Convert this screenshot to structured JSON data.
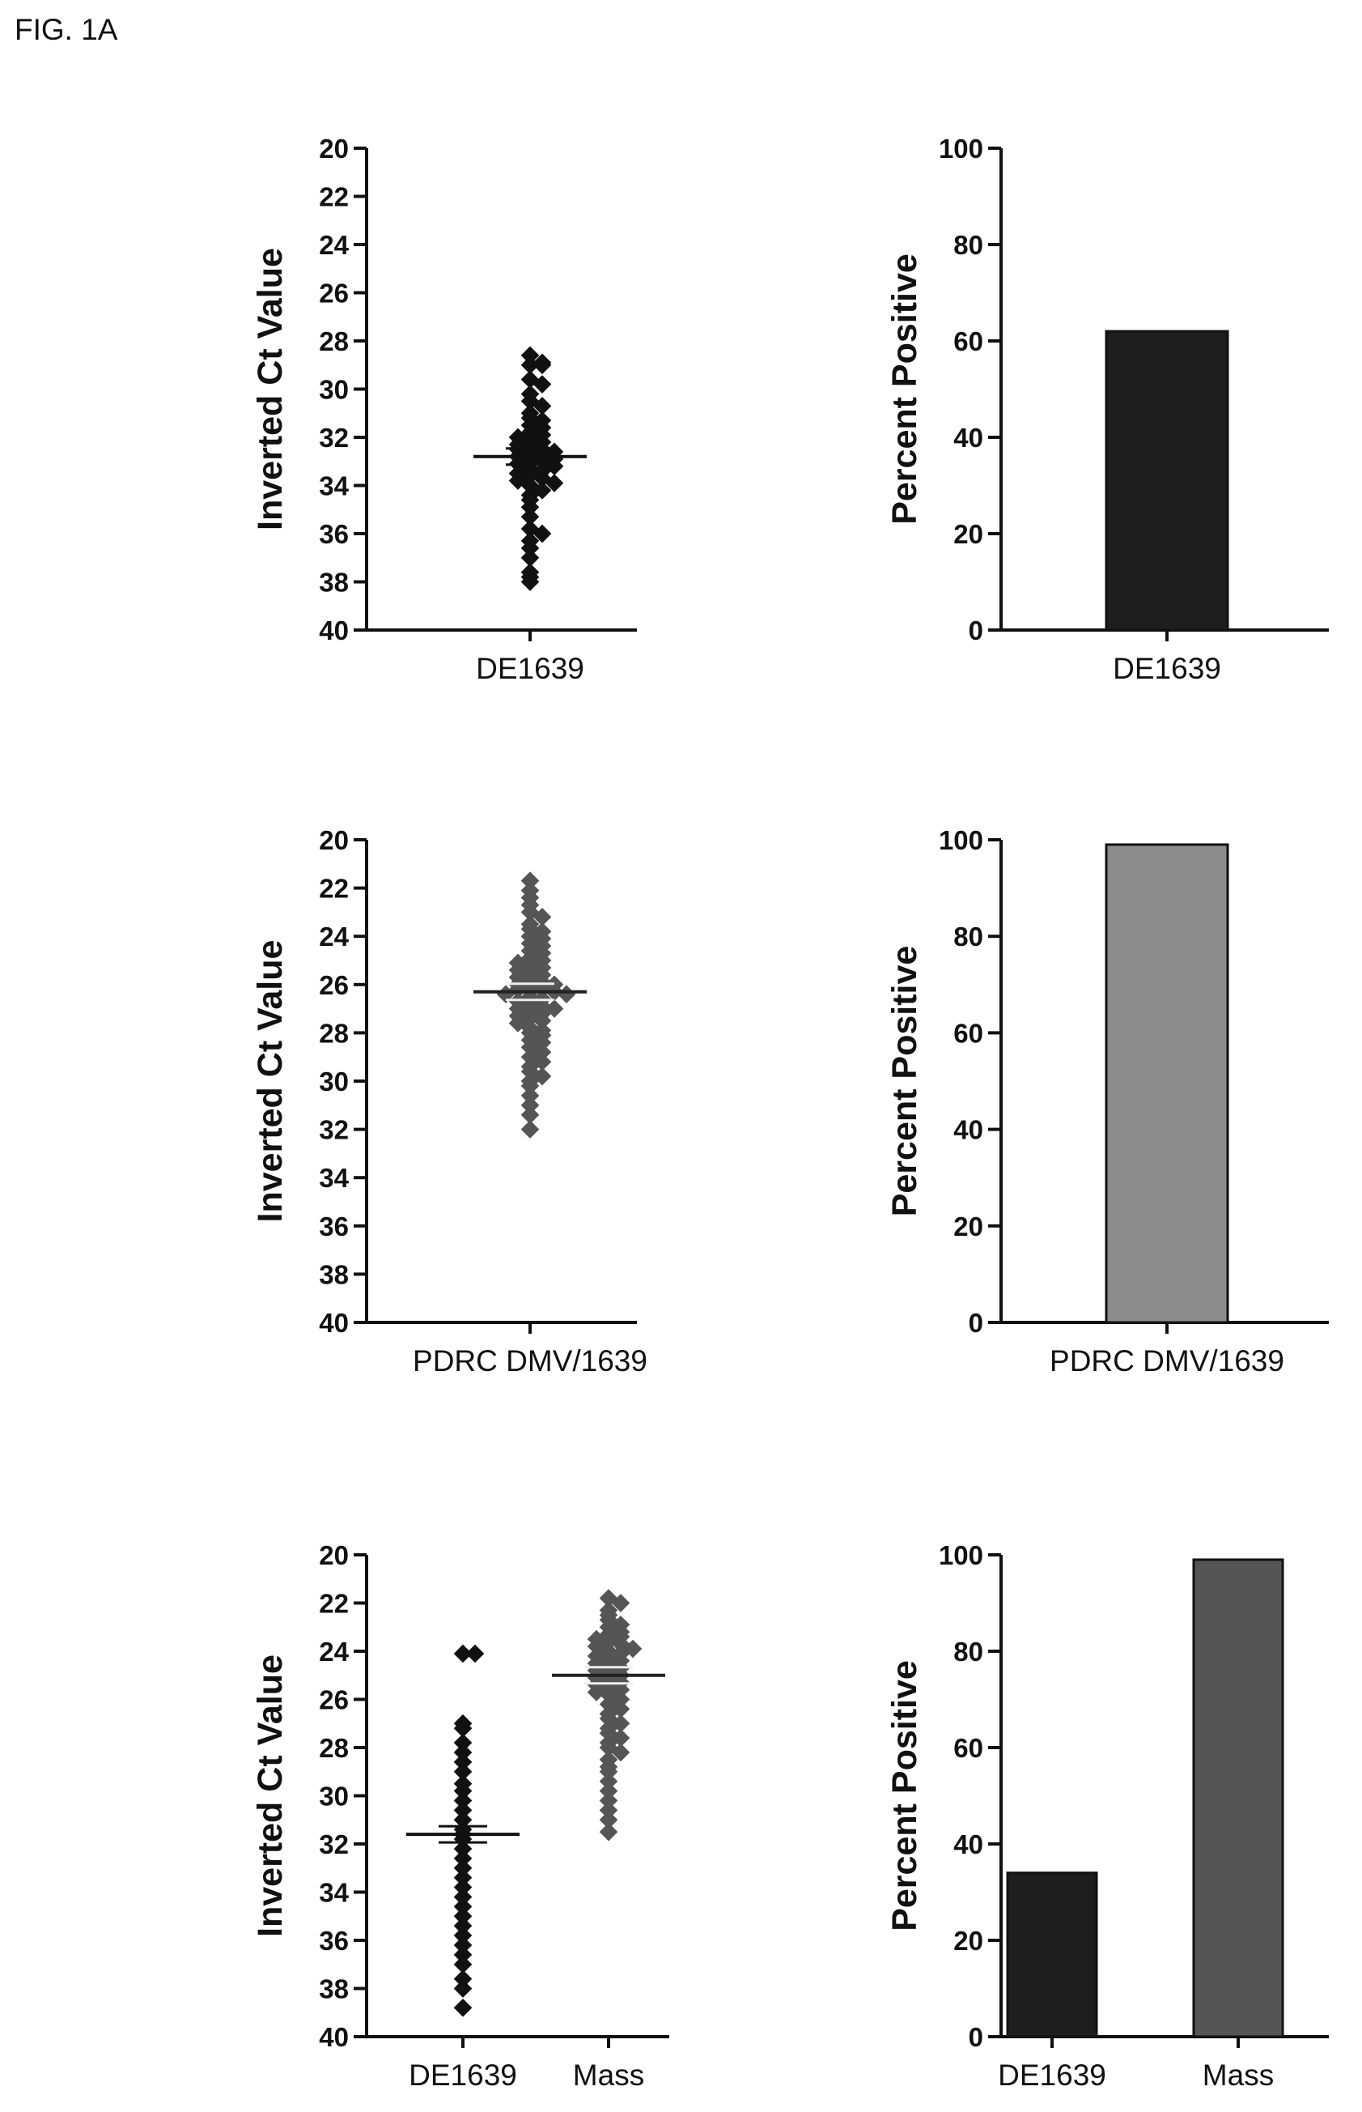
{
  "figure_label": "FIG. 1A",
  "chart_data": [
    {
      "id": "scatter-de1639",
      "type": "scatter",
      "ylabel": "Inverted Ct Value",
      "ylim": [
        20,
        40
      ],
      "y_inverted": true,
      "yticks": [
        20,
        22,
        24,
        26,
        28,
        30,
        32,
        34,
        36,
        38,
        40
      ],
      "categories": [
        "DE1639"
      ],
      "series": [
        {
          "category": "DE1639",
          "color": "#111111",
          "mean": 32.8,
          "values": [
            28.6,
            28.9,
            29.0,
            29.0,
            29.6,
            29.8,
            30.2,
            30.5,
            30.7,
            31.0,
            31.2,
            31.3,
            31.5,
            31.6,
            31.8,
            31.9,
            32.0,
            32.1,
            32.2,
            32.3,
            32.4,
            32.5,
            32.5,
            32.6,
            32.7,
            32.8,
            32.8,
            32.9,
            33.0,
            33.0,
            33.1,
            33.2,
            33.3,
            33.4,
            33.5,
            33.6,
            33.7,
            33.8,
            33.9,
            34.0,
            34.2,
            34.4,
            34.6,
            34.9,
            35.3,
            35.8,
            36.0,
            36.3,
            36.6,
            37.0,
            37.6,
            37.8,
            38.0
          ]
        }
      ]
    },
    {
      "id": "bar-de1639",
      "type": "bar",
      "ylabel": "Percent Positive",
      "ylim": [
        0,
        100
      ],
      "yticks": [
        0,
        20,
        40,
        60,
        80,
        100
      ],
      "categories": [
        "DE1639"
      ],
      "values": [
        62
      ],
      "colors": [
        "#1e1e1e"
      ]
    },
    {
      "id": "scatter-pdrc",
      "type": "scatter",
      "ylabel": "Inverted Ct Value",
      "ylim": [
        20,
        40
      ],
      "y_inverted": true,
      "yticks": [
        20,
        22,
        24,
        26,
        28,
        30,
        32,
        34,
        36,
        38,
        40
      ],
      "categories": [
        "PDRC DMV/1639"
      ],
      "series": [
        {
          "category": "PDRC DMV/1639",
          "color": "#555555",
          "mean": 26.3,
          "values": [
            21.7,
            22.1,
            22.4,
            22.7,
            23.0,
            23.2,
            23.5,
            23.7,
            23.8,
            24.0,
            24.1,
            24.3,
            24.4,
            24.6,
            24.7,
            24.9,
            25.0,
            25.1,
            25.2,
            25.3,
            25.4,
            25.5,
            25.6,
            25.7,
            25.8,
            25.9,
            26.0,
            26.0,
            26.1,
            26.2,
            26.2,
            26.3,
            26.4,
            26.4,
            26.5,
            26.6,
            26.7,
            26.8,
            26.9,
            27.0,
            27.0,
            27.1,
            27.2,
            27.3,
            27.4,
            27.5,
            27.6,
            27.8,
            27.9,
            28.0,
            28.1,
            28.3,
            28.4,
            28.6,
            28.8,
            29.0,
            29.2,
            29.4,
            29.6,
            29.8,
            30.0,
            30.2,
            30.6,
            31.0,
            31.4,
            32.0
          ]
        }
      ]
    },
    {
      "id": "bar-pdrc",
      "type": "bar",
      "ylabel": "Percent Positive",
      "ylim": [
        0,
        100
      ],
      "yticks": [
        0,
        20,
        40,
        60,
        80,
        100
      ],
      "categories": [
        "PDRC DMV/1639"
      ],
      "values": [
        99
      ],
      "colors": [
        "#8c8c8c"
      ]
    },
    {
      "id": "scatter-mass",
      "type": "scatter",
      "ylabel": "Inverted Ct Value",
      "ylim": [
        20,
        40
      ],
      "y_inverted": true,
      "yticks": [
        20,
        22,
        24,
        26,
        28,
        30,
        32,
        34,
        36,
        38,
        40
      ],
      "categories": [
        "DE1639",
        "Mass"
      ],
      "series": [
        {
          "category": "DE1639",
          "color": "#111111",
          "mean": 31.6,
          "values": [
            24.1,
            24.1,
            27.0,
            27.2,
            27.8,
            28.2,
            28.6,
            29.0,
            29.5,
            29.8,
            30.2,
            30.6,
            31.0,
            31.4,
            31.6,
            31.8,
            32.2,
            32.6,
            33.0,
            33.4,
            33.8,
            34.2,
            34.6,
            35.0,
            35.4,
            35.8,
            36.2,
            36.6,
            37.0,
            37.6,
            38.0,
            38.8
          ]
        },
        {
          "category": "Mass",
          "color": "#555555",
          "mean": 25.0,
          "values": [
            21.8,
            22.0,
            22.3,
            22.5,
            22.7,
            22.9,
            23.0,
            23.2,
            23.3,
            23.4,
            23.5,
            23.6,
            23.7,
            23.8,
            23.9,
            24.0,
            24.1,
            24.2,
            24.3,
            24.4,
            24.5,
            24.6,
            24.7,
            24.8,
            24.9,
            25.0,
            25.1,
            25.2,
            25.3,
            25.4,
            25.5,
            25.6,
            25.7,
            25.8,
            26.0,
            26.2,
            26.4,
            26.6,
            26.8,
            27.0,
            27.2,
            27.4,
            27.6,
            27.8,
            28.0,
            28.2,
            28.5,
            28.8,
            29.0,
            29.4,
            29.8,
            30.2,
            30.6,
            31.0,
            31.5
          ]
        }
      ]
    },
    {
      "id": "bar-mass",
      "type": "bar",
      "ylabel": "Percent Positive",
      "ylim": [
        0,
        100
      ],
      "yticks": [
        0,
        20,
        40,
        60,
        80,
        100
      ],
      "categories": [
        "DE1639",
        "Mass"
      ],
      "values": [
        34,
        99
      ],
      "colors": [
        "#1e1e1e",
        "#555555"
      ]
    }
  ]
}
